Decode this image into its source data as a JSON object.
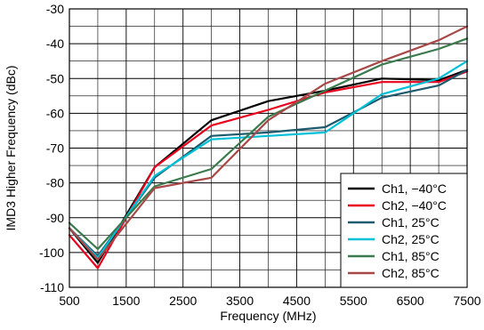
{
  "chart_data": {
    "type": "line",
    "title": "",
    "xlabel": "Frequency (MHz)",
    "ylabel": "IMD3 Higher Frequency (dBc)",
    "xlim": [
      500,
      7500
    ],
    "ylim": [
      -110,
      -30
    ],
    "x_ticks": [
      500,
      1500,
      2500,
      3500,
      4500,
      5500,
      6500,
      7500
    ],
    "x_tick_labels": [
      "500",
      "1500",
      "2500",
      "3500",
      "4500",
      "5500",
      "6500",
      "7500"
    ],
    "x_minor_step": 500,
    "y_ticks": [
      -110,
      -100,
      -90,
      -80,
      -70,
      -60,
      -50,
      -40,
      -30
    ],
    "y_tick_labels": [
      "-110",
      "-100",
      "-90",
      "-80",
      "-70",
      "-60",
      "-50",
      "-40",
      "-30"
    ],
    "y_minor_step": 5,
    "grid": true,
    "legend_position": "bottom-right",
    "series": [
      {
        "name": "Ch1, −40°C",
        "color": "#000000",
        "x": [
          500,
          1000,
          2000,
          3000,
          4000,
          5000,
          6000,
          7000,
          7500
        ],
        "y": [
          -93,
          -103,
          -75.5,
          -62,
          -56.5,
          -53.5,
          -50,
          -50.5,
          -47.5
        ]
      },
      {
        "name": "Ch2, −40°C",
        "color": "#e8001c",
        "x": [
          500,
          1000,
          2000,
          3000,
          4000,
          5000,
          6000,
          7000,
          7500
        ],
        "y": [
          -95,
          -104.5,
          -75.5,
          -63.5,
          -59,
          -54,
          -51,
          -51,
          -48
        ]
      },
      {
        "name": "Ch1, 25°C",
        "color": "#1c5a6e",
        "x": [
          500,
          1000,
          2000,
          3000,
          4000,
          5000,
          6000,
          7000,
          7500
        ],
        "y": [
          -93,
          -101,
          -78.5,
          -66.5,
          -65.5,
          -64,
          -55.5,
          -52,
          -47.5
        ]
      },
      {
        "name": "Ch2, 25°C",
        "color": "#00c0d8",
        "x": [
          500,
          1000,
          2000,
          3000,
          4000,
          5000,
          6000,
          7000,
          7500
        ],
        "y": [
          -93,
          -101.5,
          -78,
          -67.5,
          -66.5,
          -65.5,
          -54.5,
          -50,
          -45
        ]
      },
      {
        "name": "Ch1, 85°C",
        "color": "#3a7a4c",
        "x": [
          500,
          1000,
          2000,
          3000,
          4000,
          5000,
          6000,
          7000,
          7500
        ],
        "y": [
          -91.5,
          -99,
          -81,
          -76,
          -61,
          -53.5,
          -46,
          -41.5,
          -38.5
        ]
      },
      {
        "name": "Ch2, 85°C",
        "color": "#a84848",
        "x": [
          500,
          1000,
          2000,
          3000,
          4000,
          5000,
          6000,
          7000,
          7500
        ],
        "y": [
          -93,
          -102,
          -81.5,
          -78.5,
          -62,
          -51.5,
          -45,
          -39,
          -35
        ]
      }
    ]
  }
}
